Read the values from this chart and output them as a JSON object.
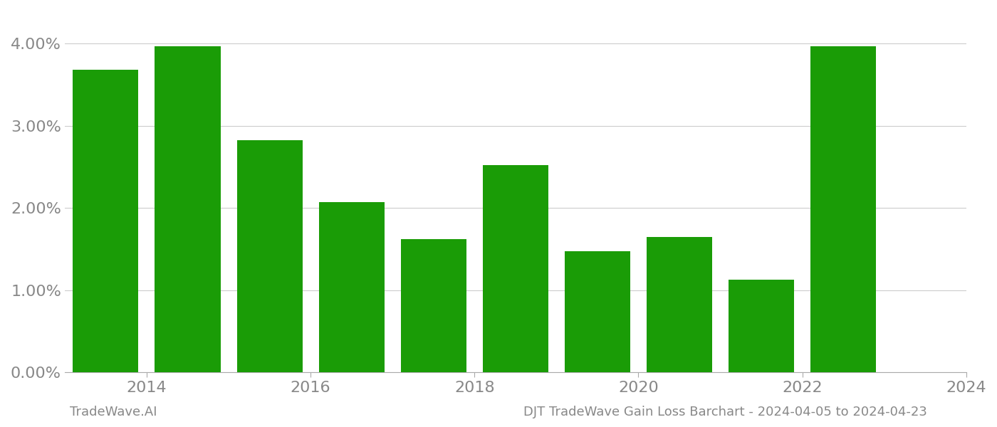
{
  "years": [
    2013.5,
    2014.5,
    2015.5,
    2016.5,
    2017.5,
    2018.5,
    2019.5,
    2020.5,
    2021.5,
    2022.5
  ],
  "values": [
    0.0368,
    0.0397,
    0.0282,
    0.0207,
    0.0162,
    0.0252,
    0.0147,
    0.0165,
    0.0113,
    0.0397
  ],
  "bar_color": "#1a9c06",
  "bar_width": 0.8,
  "ylim": [
    0.0,
    0.044
  ],
  "yticks": [
    0.0,
    0.01,
    0.02,
    0.03,
    0.04
  ],
  "ytick_labels": [
    "0.00%",
    "1.00%",
    "2.00%",
    "3.00%",
    "4.00%"
  ],
  "xtick_positions": [
    2014,
    2016,
    2018,
    2020,
    2022,
    2024
  ],
  "xtick_labels": [
    "2014",
    "2016",
    "2018",
    "2020",
    "2022",
    "2024"
  ],
  "xlim": [
    2013.0,
    2023.5
  ],
  "grid_color": "#cccccc",
  "background_color": "#ffffff",
  "footer_left": "TradeWave.AI",
  "footer_right": "DJT TradeWave Gain Loss Barchart - 2024-04-05 to 2024-04-23",
  "footer_color": "#888888",
  "footer_fontsize": 13,
  "tick_fontsize": 16,
  "tick_color": "#888888"
}
